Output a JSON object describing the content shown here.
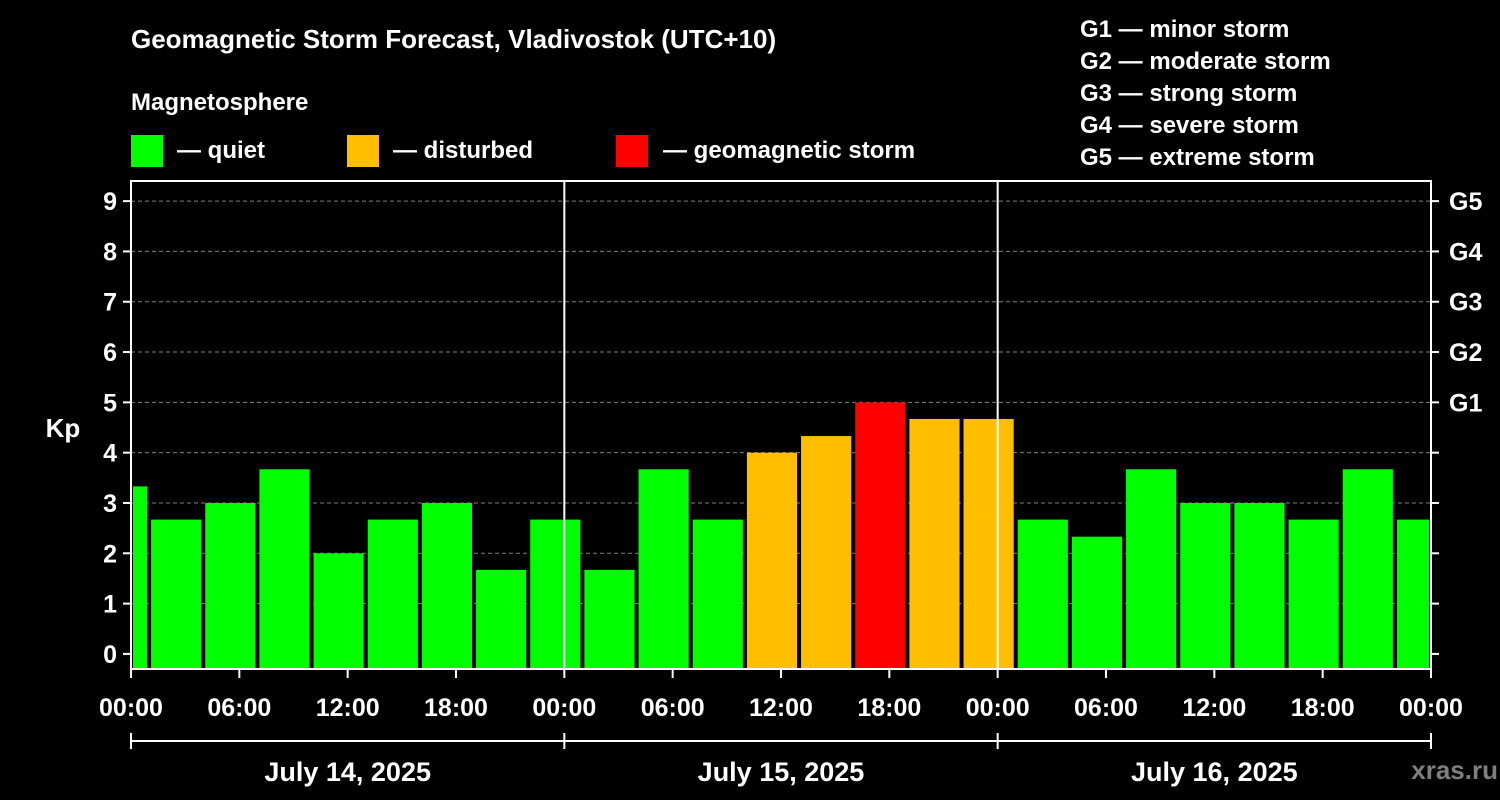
{
  "header": {
    "title": "Geomagnetic Storm Forecast, Vladivostok (UTC+10)",
    "legend_title": "Magnetosphere",
    "watermark": "xras.ru"
  },
  "legend": [
    {
      "label": "— quiet",
      "color": "#00ff00"
    },
    {
      "label": "— disturbed",
      "color": "#ffbf00"
    },
    {
      "label": "— geomagnetic storm",
      "color": "#ff0000"
    }
  ],
  "storm_scale": [
    "G1 — minor storm",
    "G2 — moderate storm",
    "G3 — strong storm",
    "G4 — severe storm",
    "G5 — extreme storm"
  ],
  "colors": {
    "quiet": "#00ff00",
    "disturbed": "#ffbf00",
    "storm": "#ff0000",
    "background": "#000000",
    "axis": "#ffffff",
    "grid": "#808080"
  },
  "chart_data": {
    "type": "bar",
    "title": "Geomagnetic Storm Forecast, Vladivostok (UTC+10)",
    "ylabel": "Kp",
    "xlabel": "",
    "ylim": [
      -0.3,
      9.4
    ],
    "y_ticks": [
      "0",
      "1",
      "2",
      "3",
      "4",
      "5",
      "6",
      "7",
      "8",
      "9"
    ],
    "right_ticks": [
      {
        "value": 5,
        "label": "G1"
      },
      {
        "value": 6,
        "label": "G2"
      },
      {
        "value": 7,
        "label": "G3"
      },
      {
        "value": 8,
        "label": "G4"
      },
      {
        "value": 9,
        "label": "G5"
      }
    ],
    "x_range_hours": [
      0,
      72
    ],
    "x_ticks": [
      {
        "hour": 0,
        "label": "00:00"
      },
      {
        "hour": 6,
        "label": "06:00"
      },
      {
        "hour": 12,
        "label": "12:00"
      },
      {
        "hour": 18,
        "label": "18:00"
      },
      {
        "hour": 24,
        "label": "00:00"
      },
      {
        "hour": 30,
        "label": "06:00"
      },
      {
        "hour": 36,
        "label": "12:00"
      },
      {
        "hour": 42,
        "label": "18:00"
      },
      {
        "hour": 48,
        "label": "00:00"
      },
      {
        "hour": 54,
        "label": "06:00"
      },
      {
        "hour": 60,
        "label": "12:00"
      },
      {
        "hour": 66,
        "label": "18:00"
      },
      {
        "hour": 72,
        "label": "00:00"
      }
    ],
    "days": [
      {
        "label": "July 14, 2025",
        "start": 0,
        "end": 24
      },
      {
        "label": "July 15, 2025",
        "start": 24,
        "end": 48
      },
      {
        "label": "July 16, 2025",
        "start": 48,
        "end": 72
      }
    ],
    "day_boundaries": [
      24,
      48
    ],
    "bars": [
      {
        "start": 0,
        "end": 1,
        "value": 3.33,
        "status": "quiet"
      },
      {
        "start": 1,
        "end": 4,
        "value": 2.67,
        "status": "quiet"
      },
      {
        "start": 4,
        "end": 7,
        "value": 3.0,
        "status": "quiet"
      },
      {
        "start": 7,
        "end": 10,
        "value": 3.67,
        "status": "quiet"
      },
      {
        "start": 10,
        "end": 13,
        "value": 2.0,
        "status": "quiet"
      },
      {
        "start": 13,
        "end": 16,
        "value": 2.67,
        "status": "quiet"
      },
      {
        "start": 16,
        "end": 19,
        "value": 3.0,
        "status": "quiet"
      },
      {
        "start": 19,
        "end": 22,
        "value": 1.67,
        "status": "quiet"
      },
      {
        "start": 22,
        "end": 25,
        "value": 2.67,
        "status": "quiet"
      },
      {
        "start": 25,
        "end": 28,
        "value": 1.67,
        "status": "quiet"
      },
      {
        "start": 28,
        "end": 31,
        "value": 3.67,
        "status": "quiet"
      },
      {
        "start": 31,
        "end": 34,
        "value": 2.67,
        "status": "quiet"
      },
      {
        "start": 34,
        "end": 37,
        "value": 4.0,
        "status": "disturbed"
      },
      {
        "start": 37,
        "end": 40,
        "value": 4.33,
        "status": "disturbed"
      },
      {
        "start": 40,
        "end": 43,
        "value": 5.0,
        "status": "storm"
      },
      {
        "start": 43,
        "end": 46,
        "value": 4.67,
        "status": "disturbed"
      },
      {
        "start": 46,
        "end": 49,
        "value": 4.67,
        "status": "disturbed"
      },
      {
        "start": 49,
        "end": 52,
        "value": 2.67,
        "status": "quiet"
      },
      {
        "start": 52,
        "end": 55,
        "value": 2.33,
        "status": "quiet"
      },
      {
        "start": 55,
        "end": 58,
        "value": 3.67,
        "status": "quiet"
      },
      {
        "start": 58,
        "end": 61,
        "value": 3.0,
        "status": "quiet"
      },
      {
        "start": 61,
        "end": 64,
        "value": 3.0,
        "status": "quiet"
      },
      {
        "start": 64,
        "end": 67,
        "value": 2.67,
        "status": "quiet"
      },
      {
        "start": 67,
        "end": 70,
        "value": 3.67,
        "status": "quiet"
      },
      {
        "start": 70,
        "end": 72,
        "value": 2.67,
        "status": "quiet"
      }
    ]
  }
}
